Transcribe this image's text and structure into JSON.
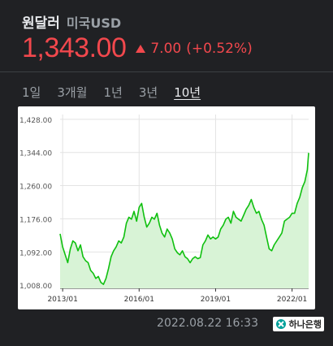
{
  "header": {
    "title": "원달러",
    "subtitle": "미국USD"
  },
  "quote": {
    "price": "1,343.00",
    "change": "7.00",
    "change_pct": "(+0.52%)",
    "direction": "up"
  },
  "tabs": [
    {
      "label": "1일",
      "active": false
    },
    {
      "label": "3개월",
      "active": false
    },
    {
      "label": "1년",
      "active": false
    },
    {
      "label": "3년",
      "active": false
    },
    {
      "label": "10년",
      "active": true
    }
  ],
  "footer": {
    "timestamp": "2022.08.22 16:33",
    "source": "하나은행"
  },
  "colors": {
    "up": "#f2484d",
    "line": "#10c010",
    "area": "#d8f3d6",
    "grid": "#e3e3e3"
  },
  "chart_data": {
    "type": "area",
    "title": "",
    "xlabel": "",
    "ylabel": "",
    "ylim": [
      1000,
      1440
    ],
    "y_ticks": [
      1008,
      1092,
      1176,
      1260,
      1344,
      1428
    ],
    "y_tick_labels": [
      "1,008.00",
      "1,092.00",
      "1,176.00",
      "1,260.00",
      "1,344.00",
      "1,428.00"
    ],
    "x_range": [
      2012.9,
      2022.65
    ],
    "x_ticks": [
      2013.0,
      2016.0,
      2019.0,
      2022.0
    ],
    "x_tick_labels": [
      "2013/01",
      "2016/01",
      "2019/01",
      "2022/01"
    ],
    "grid": true,
    "series": [
      {
        "x": [
          2012.9,
          2013.0,
          2013.1,
          2013.2,
          2013.3,
          2013.4,
          2013.5,
          2013.6,
          2013.7,
          2013.8,
          2013.9,
          2014.0,
          2014.1,
          2014.2,
          2014.3,
          2014.4,
          2014.5,
          2014.6,
          2014.7,
          2014.8,
          2014.9,
          2015.0,
          2015.1,
          2015.2,
          2015.3,
          2015.4,
          2015.5,
          2015.6,
          2015.7,
          2015.8,
          2015.9,
          2016.0,
          2016.1,
          2016.2,
          2016.3,
          2016.4,
          2016.5,
          2016.6,
          2016.7,
          2016.8,
          2016.9,
          2017.0,
          2017.1,
          2017.2,
          2017.3,
          2017.4,
          2017.5,
          2017.6,
          2017.7,
          2017.8,
          2017.9,
          2018.0,
          2018.1,
          2018.2,
          2018.3,
          2018.4,
          2018.5,
          2018.6,
          2018.7,
          2018.8,
          2018.9,
          2019.0,
          2019.1,
          2019.2,
          2019.3,
          2019.4,
          2019.5,
          2019.6,
          2019.7,
          2019.8,
          2019.9,
          2020.0,
          2020.1,
          2020.2,
          2020.3,
          2020.4,
          2020.5,
          2020.6,
          2020.7,
          2020.8,
          2020.9,
          2021.0,
          2021.1,
          2021.2,
          2021.3,
          2021.4,
          2021.5,
          2021.6,
          2021.7,
          2021.8,
          2021.9,
          2022.0,
          2022.1,
          2022.2,
          2022.3,
          2022.4,
          2022.5,
          2022.6,
          2022.65
        ],
        "y": [
          1138,
          1105,
          1085,
          1065,
          1100,
          1120,
          1115,
          1095,
          1110,
          1080,
          1070,
          1065,
          1045,
          1038,
          1025,
          1030,
          1015,
          1010,
          1025,
          1050,
          1080,
          1095,
          1105,
          1120,
          1115,
          1130,
          1165,
          1180,
          1175,
          1195,
          1170,
          1205,
          1215,
          1180,
          1155,
          1165,
          1180,
          1175,
          1190,
          1160,
          1140,
          1130,
          1150,
          1140,
          1125,
          1100,
          1090,
          1085,
          1095,
          1080,
          1075,
          1065,
          1075,
          1080,
          1075,
          1078,
          1110,
          1120,
          1135,
          1125,
          1130,
          1125,
          1130,
          1150,
          1160,
          1175,
          1180,
          1165,
          1195,
          1180,
          1175,
          1170,
          1185,
          1200,
          1210,
          1225,
          1205,
          1190,
          1195,
          1175,
          1160,
          1130,
          1100,
          1095,
          1110,
          1120,
          1130,
          1140,
          1170,
          1175,
          1180,
          1190,
          1190,
          1215,
          1230,
          1255,
          1270,
          1300,
          1343
        ]
      }
    ]
  }
}
